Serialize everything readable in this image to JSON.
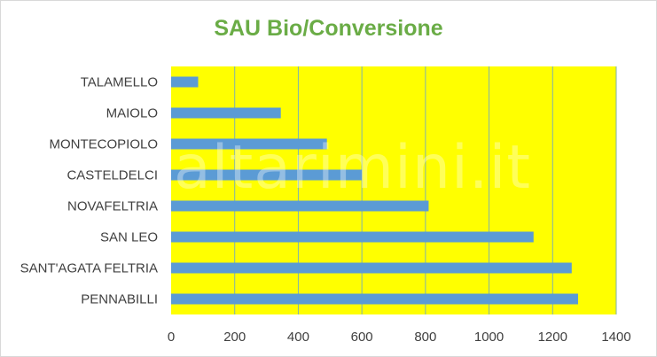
{
  "chart_data": {
    "type": "bar",
    "orientation": "horizontal",
    "title": "SAU Bio/Conversione",
    "watermark": "altarimini.it",
    "categories": [
      "TALAMELLO",
      "MAIOLO",
      "MONTECOPIOLO",
      "CASTELDELCI",
      "NOVAFELTRIA",
      "SAN LEO",
      "SANT'AGATA FELTRIA",
      "PENNABILLI"
    ],
    "values": [
      85,
      345,
      490,
      600,
      810,
      1140,
      1260,
      1280
    ],
    "xlim": [
      0,
      1400
    ],
    "xticks": [
      "0",
      "200",
      "400",
      "600",
      "800",
      "1000",
      "1200",
      "1400"
    ],
    "grid": "vertical",
    "colors": {
      "bar": "#5b9bd5",
      "plot_background": "#ffff00",
      "grid": "#7fb2ad",
      "title": "#6aac46"
    }
  }
}
